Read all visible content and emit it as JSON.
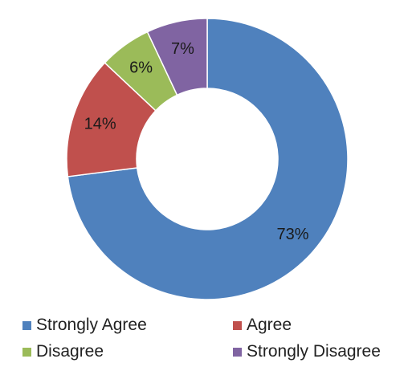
{
  "chart_data": {
    "type": "pie",
    "variant": "donut",
    "categories": [
      "Strongly Agree",
      "Agree",
      "Disagree",
      "Strongly Disagree"
    ],
    "values": [
      73,
      14,
      6,
      7
    ],
    "data_labels": [
      "73%",
      "14%",
      "6%",
      "7%"
    ],
    "colors": [
      "#4F81BD",
      "#C0504D",
      "#9BBB59",
      "#8064A2"
    ],
    "legend_position": "bottom",
    "title": "",
    "start_angle_deg": 0,
    "direction": "clockwise"
  },
  "legend": {
    "items": [
      {
        "label": "Strongly Agree",
        "color": "#4F81BD"
      },
      {
        "label": "Agree",
        "color": "#C0504D"
      },
      {
        "label": "Disagree",
        "color": "#9BBB59"
      },
      {
        "label": "Strongly Disagree",
        "color": "#8064A2"
      }
    ]
  }
}
